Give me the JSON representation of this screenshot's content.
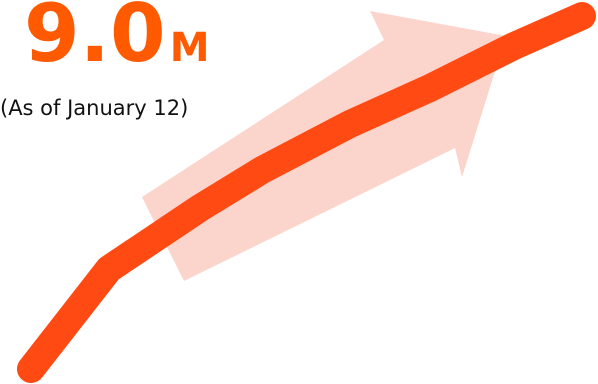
{
  "headline": {
    "number": "9.0",
    "unit": "M",
    "caption": "(As of January 12)"
  },
  "colors": {
    "accent": "#ff5a00",
    "trend_line": "#ff4a14",
    "arrow": "#fbd5cc",
    "caption_text": "#111111"
  },
  "graphic": {
    "trend_line_icon": "growth-line",
    "arrow_icon": "up-right-arrow"
  }
}
